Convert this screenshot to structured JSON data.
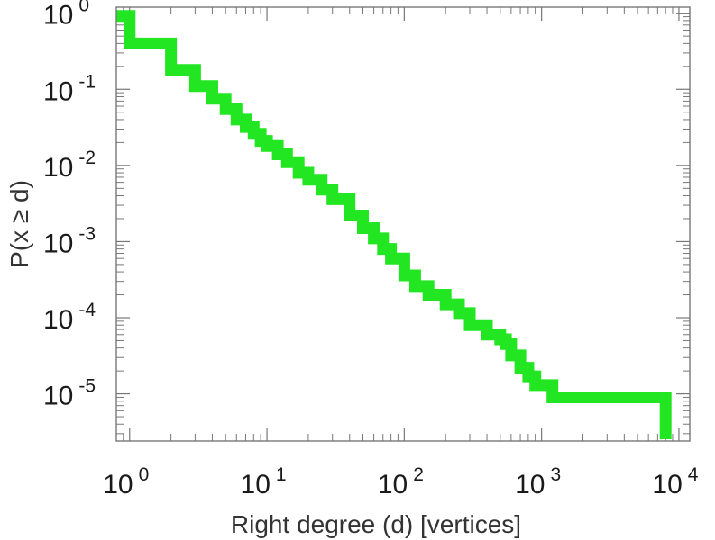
{
  "chart_data": {
    "type": "line",
    "xlabel": "Right degree (d) [vertices]",
    "ylabel": "P(x ≥ d)",
    "x_scale": "log",
    "y_scale": "log",
    "xlim": [
      0.8,
      12000
    ],
    "ylim": [
      2.4e-06,
      1.2
    ],
    "grid": false,
    "line_color": "#22e622",
    "x_ticks": [
      {
        "base": "10",
        "exp": "0",
        "value": 1
      },
      {
        "base": "10",
        "exp": "1",
        "value": 10
      },
      {
        "base": "10",
        "exp": "2",
        "value": 100
      },
      {
        "base": "10",
        "exp": "3",
        "value": 1000
      },
      {
        "base": "10",
        "exp": "4",
        "value": 10000
      }
    ],
    "y_ticks": [
      {
        "base": "10",
        "exp": "0",
        "value": 1
      },
      {
        "base": "10",
        "exp": "-1",
        "value": 0.1
      },
      {
        "base": "10",
        "exp": "-2",
        "value": 0.01
      },
      {
        "base": "10",
        "exp": "-3",
        "value": 0.001
      },
      {
        "base": "10",
        "exp": "-4",
        "value": 0.0001
      },
      {
        "base": "10",
        "exp": "-5",
        "value": 1e-05
      }
    ],
    "series": [
      {
        "x": [
          0.8,
          1,
          2,
          3,
          4,
          5,
          6,
          7,
          8,
          9,
          10,
          12,
          14,
          17,
          20,
          25,
          30,
          40,
          50,
          60,
          70,
          80,
          100,
          120,
          150,
          200,
          250,
          300,
          400,
          500,
          550,
          600,
          700,
          800,
          900,
          1200,
          8000
        ],
        "y": [
          0.92,
          0.4,
          0.18,
          0.11,
          0.075,
          0.055,
          0.04,
          0.032,
          0.026,
          0.021,
          0.018,
          0.014,
          0.011,
          0.008,
          0.0065,
          0.0048,
          0.0036,
          0.0022,
          0.0015,
          0.0011,
          0.0008,
          0.0006,
          0.00036,
          0.00026,
          0.0002,
          0.00015,
          0.000115,
          8e-05,
          6e-05,
          5.2e-05,
          4.5e-05,
          3.2e-05,
          2.2e-05,
          1.7e-05,
          1.3e-05,
          9e-06,
          4.5e-06
        ]
      }
    ]
  }
}
